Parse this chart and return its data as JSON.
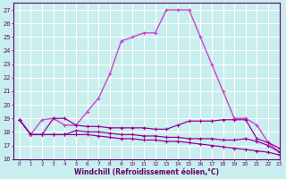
{
  "xlabel": "Windchill (Refroidissement éolien,°C)",
  "xlim": [
    -0.5,
    23
  ],
  "ylim": [
    16,
    27.5
  ],
  "yticks": [
    16,
    17,
    18,
    19,
    20,
    21,
    22,
    23,
    24,
    25,
    26,
    27
  ],
  "xticks": [
    0,
    1,
    2,
    3,
    4,
    5,
    6,
    7,
    8,
    9,
    10,
    11,
    12,
    13,
    14,
    15,
    16,
    17,
    18,
    19,
    20,
    21,
    22,
    23
  ],
  "background_color": "#c8eeee",
  "grid_color": "#ffffff",
  "series": [
    {
      "x": [
        0,
        1,
        2,
        3,
        4,
        5,
        6,
        7,
        8,
        9,
        10,
        11,
        12,
        13,
        14,
        15,
        16,
        17,
        18,
        19,
        20,
        21,
        22,
        23
      ],
      "y": [
        18.9,
        17.8,
        18.9,
        19.0,
        18.5,
        18.5,
        19.5,
        20.5,
        22.3,
        24.7,
        25.0,
        25.3,
        25.3,
        27.0,
        27.0,
        27.0,
        25.0,
        23.0,
        21.0,
        19.0,
        19.0,
        18.5,
        17.2,
        16.5
      ],
      "color": "#cc44cc",
      "linewidth": 1.0
    },
    {
      "x": [
        0,
        1,
        2,
        3,
        4,
        5,
        6,
        7,
        8,
        9,
        10,
        11,
        12,
        13,
        14,
        15,
        16,
        17,
        18,
        19,
        20,
        21,
        22,
        23
      ],
      "y": [
        18.9,
        17.8,
        17.8,
        19.0,
        19.0,
        18.5,
        18.4,
        18.4,
        18.3,
        18.3,
        18.3,
        18.3,
        18.2,
        18.2,
        18.5,
        18.8,
        18.8,
        18.8,
        18.9,
        18.9,
        18.9,
        17.5,
        17.2,
        16.8
      ],
      "color": "#990099",
      "linewidth": 0.9
    },
    {
      "x": [
        0,
        1,
        2,
        3,
        4,
        5,
        6,
        7,
        8,
        9,
        10,
        11,
        12,
        13,
        14,
        15,
        16,
        17,
        18,
        19,
        20,
        21,
        22,
        23
      ],
      "y": [
        18.9,
        17.8,
        17.8,
        17.8,
        17.8,
        18.1,
        18.0,
        18.0,
        17.9,
        17.8,
        17.8,
        17.7,
        17.7,
        17.6,
        17.6,
        17.5,
        17.5,
        17.5,
        17.4,
        17.4,
        17.5,
        17.3,
        17.0,
        16.5
      ],
      "color": "#990099",
      "linewidth": 0.9
    },
    {
      "x": [
        0,
        1,
        2,
        3,
        4,
        5,
        6,
        7,
        8,
        9,
        10,
        11,
        12,
        13,
        14,
        15,
        16,
        17,
        18,
        19,
        20,
        21,
        22,
        23
      ],
      "y": [
        18.9,
        17.8,
        17.8,
        17.8,
        17.8,
        17.8,
        17.8,
        17.7,
        17.6,
        17.5,
        17.5,
        17.4,
        17.4,
        17.3,
        17.3,
        17.2,
        17.1,
        17.0,
        16.9,
        16.8,
        16.7,
        16.6,
        16.5,
        16.3
      ],
      "color": "#990099",
      "linewidth": 0.9
    }
  ]
}
